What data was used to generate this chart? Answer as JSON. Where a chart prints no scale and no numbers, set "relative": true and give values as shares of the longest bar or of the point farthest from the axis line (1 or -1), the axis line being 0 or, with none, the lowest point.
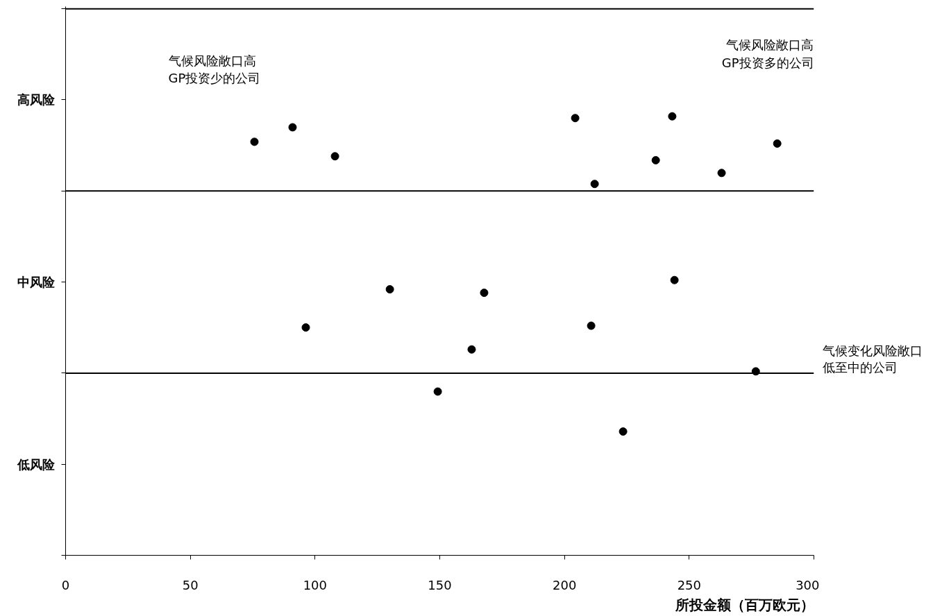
{
  "chart_data": {
    "type": "scatter",
    "relative": true,
    "xlabel": "所投金额（百万欧元）",
    "marker": "circle",
    "grid": false,
    "xlim": [
      0,
      300
    ],
    "xticks": [
      0,
      50,
      100,
      150,
      200,
      250,
      300
    ],
    "ref_lines": [
      {
        "axis": "y",
        "value": 0.415,
        "color": "#000000"
      },
      {
        "axis": "y",
        "value": 0.83,
        "color": "#000000"
      },
      {
        "axis": "y",
        "value": 1.245,
        "color": "#000000"
      }
    ],
    "series": [
      {
        "color": "#000000",
        "x": [
          75.7,
          91.0,
          108.0
        ],
        "values": [
          0.942,
          0.975,
          0.909
        ]
      },
      {
        "color": "#000000",
        "x": [
          204.3,
          243.2,
          236.6,
          285.3,
          263.0,
          212.1
        ],
        "values": [
          0.996,
          1,
          0.9,
          0.938,
          0.871,
          0.846
        ]
      },
      {
        "color": "#000000",
        "x": [
          96.3,
          130.0,
          167.8,
          244.1,
          210.7,
          162.8,
          276.7,
          149.2,
          223.5
        ],
        "values": [
          0.519,
          0.606,
          0.598,
          0.627,
          0.523,
          0.469,
          0.419,
          0.373,
          0.282
        ]
      }
    ],
    "annotations": [
      "气候风险敞口高\nGP投资少的公司",
      "气候风险敞口高\nGP投资多的公司",
      "气候变化风险敞口低至中的公司",
      "高风险",
      "中风险",
      "低风险"
    ]
  }
}
